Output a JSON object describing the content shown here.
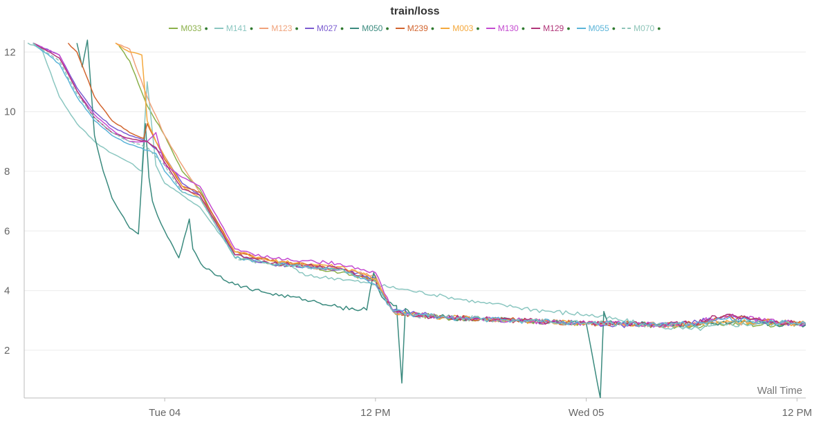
{
  "chart_data": {
    "type": "line",
    "title": "train/loss",
    "xlabel": "Wall Time",
    "ylabel": "",
    "grid": true,
    "legend_position": "top",
    "x_ticks": [
      "Tue 04",
      "12 PM",
      "Wed 05",
      "12 PM"
    ],
    "x_tick_hours": [
      24,
      36,
      48,
      60
    ],
    "xlim": [
      16,
      60.5
    ],
    "y_ticks": [
      2,
      4,
      6,
      8,
      10,
      12
    ],
    "ylim": [
      0.4,
      12.4
    ],
    "series": [
      {
        "name": "M033",
        "color": "#8bb04a",
        "dash": false,
        "x": [
          21.4,
          22,
          23,
          24,
          25,
          26,
          28,
          30,
          32,
          34,
          36,
          37,
          38,
          40,
          42,
          44,
          46,
          48,
          50,
          52,
          54,
          56,
          58,
          60,
          60.5
        ],
        "y": [
          12.2,
          11.7,
          10.2,
          9.2,
          8,
          7.4,
          5.1,
          4.9,
          4.8,
          4.6,
          4.35,
          3.3,
          3.2,
          3.1,
          3.05,
          3.0,
          2.95,
          2.9,
          2.9,
          2.85,
          2.8,
          2.9,
          2.85,
          2.9,
          2.9
        ]
      },
      {
        "name": "M141",
        "color": "#8ac6c0",
        "dash": false,
        "x": [
          16.2,
          17,
          18,
          19,
          20,
          21,
          22,
          22.7,
          23,
          23.5,
          24,
          25,
          26,
          28,
          30,
          31,
          32,
          34,
          36,
          38,
          40,
          42,
          44,
          46,
          48,
          50,
          52,
          54,
          56,
          58,
          60,
          60.5
        ],
        "y": [
          12.3,
          12.1,
          10.5,
          9.6,
          9.0,
          8.6,
          8.3,
          8.0,
          11.0,
          8.2,
          7.6,
          7.2,
          6.8,
          5.2,
          5.0,
          4.9,
          4.5,
          4.4,
          4.2,
          4.0,
          3.8,
          3.6,
          3.45,
          3.3,
          3.2,
          3.0,
          2.8,
          2.7,
          2.85,
          2.9,
          2.95,
          2.9
        ]
      },
      {
        "name": "M123",
        "color": "#f0a27a",
        "dash": false,
        "x": [
          21.2,
          22,
          23,
          24,
          25,
          26,
          28,
          30,
          32,
          34,
          36,
          37,
          38,
          40,
          42,
          44,
          46,
          48,
          50,
          52,
          54,
          56,
          58,
          60,
          60.5
        ],
        "y": [
          12.3,
          12.1,
          10.5,
          9.2,
          8.2,
          7.3,
          5.3,
          5.0,
          4.8,
          4.7,
          4.5,
          3.3,
          3.2,
          3.1,
          3.05,
          3.0,
          2.95,
          2.9,
          2.9,
          2.85,
          2.85,
          2.95,
          2.9,
          2.9,
          2.9
        ]
      },
      {
        "name": "M027",
        "color": "#7a5bd0",
        "dash": false,
        "x": [
          16.5,
          18,
          19,
          20,
          21,
          22,
          23,
          24,
          25,
          26,
          28,
          30,
          32,
          34,
          36,
          37,
          38,
          40,
          42,
          44,
          46,
          48,
          50,
          52,
          54,
          56,
          58,
          60,
          60.5
        ],
        "y": [
          12.3,
          11.9,
          10.8,
          10.0,
          9.5,
          9.2,
          9.0,
          8.5,
          7.6,
          7.2,
          5.2,
          4.9,
          4.8,
          4.7,
          4.4,
          3.35,
          3.25,
          3.1,
          3.05,
          3.0,
          2.95,
          2.9,
          2.85,
          2.85,
          2.9,
          3.2,
          2.95,
          2.9,
          2.85
        ]
      },
      {
        "name": "M050",
        "color": "#3a8a7e",
        "dash": false,
        "x": [
          19,
          19.3,
          19.6,
          20,
          20.5,
          21,
          21.5,
          22,
          22.5,
          22.9,
          23.1,
          23.3,
          23.6,
          24,
          24.8,
          25.4,
          25.6,
          26.2,
          28,
          30,
          32,
          34,
          35.5,
          35.9,
          36.2,
          36.5,
          37.2,
          37.5,
          37.7,
          38,
          40,
          42,
          44,
          46,
          48,
          48.8,
          49.0,
          49.2,
          49.6,
          50,
          52,
          54,
          56,
          58,
          60,
          60.5
        ],
        "y": [
          12.3,
          11.5,
          12.4,
          9.2,
          8.0,
          7.1,
          6.6,
          6.1,
          5.9,
          9.6,
          7.8,
          7.0,
          6.5,
          6.0,
          5.1,
          6.4,
          5.4,
          4.8,
          4.2,
          3.9,
          3.7,
          3.45,
          3.35,
          4.6,
          4.0,
          3.7,
          3.5,
          0.9,
          3.4,
          3.2,
          3.1,
          3.05,
          3.0,
          2.95,
          2.9,
          0.4,
          3.3,
          2.95,
          2.85,
          2.9,
          2.85,
          2.85,
          2.9,
          2.9,
          2.85,
          2.85
        ]
      },
      {
        "name": "M239",
        "color": "#d2642e",
        "dash": false,
        "x": [
          18.5,
          19,
          20,
          21,
          22,
          22.8,
          23,
          23.5,
          24,
          25,
          26,
          28,
          30,
          32,
          34,
          36,
          37,
          38,
          40,
          42,
          44,
          46,
          48,
          50,
          52,
          54,
          56,
          58,
          60,
          60.5
        ],
        "y": [
          12.3,
          12.0,
          10.5,
          9.7,
          9.3,
          9.1,
          9.6,
          9.0,
          8.4,
          7.5,
          7.3,
          5.3,
          5.0,
          4.9,
          4.7,
          4.3,
          3.3,
          3.2,
          3.1,
          3.05,
          3.0,
          2.95,
          2.9,
          2.9,
          2.85,
          2.9,
          3.1,
          3.0,
          2.9,
          2.9
        ]
      },
      {
        "name": "M003",
        "color": "#f4a83c",
        "dash": false,
        "x": [
          21.2,
          22,
          22.7,
          23,
          23.5,
          24,
          25,
          26,
          28,
          30,
          32,
          34,
          36,
          37,
          38,
          40,
          42,
          44,
          46,
          48,
          50,
          52,
          54,
          56,
          58,
          60,
          60.5
        ],
        "y": [
          12.3,
          12.0,
          11.9,
          9.7,
          9.0,
          8.5,
          7.5,
          7.1,
          5.3,
          5.0,
          4.9,
          4.8,
          4.4,
          3.3,
          3.2,
          3.1,
          3.05,
          3.0,
          2.95,
          2.9,
          2.9,
          2.85,
          2.85,
          3.0,
          2.95,
          2.9,
          2.9
        ]
      },
      {
        "name": "M130",
        "color": "#c44ad0",
        "dash": false,
        "x": [
          16.5,
          18,
          19,
          20,
          21,
          22,
          23,
          23.5,
          24,
          25,
          26,
          28,
          30,
          32,
          34,
          36,
          37,
          38,
          40,
          42,
          44,
          46,
          48,
          50,
          52,
          54,
          56,
          58,
          60,
          60.5
        ],
        "y": [
          12.3,
          11.9,
          10.7,
          9.9,
          9.4,
          9.0,
          9.0,
          9.3,
          8.2,
          7.8,
          7.5,
          5.4,
          5.1,
          5.0,
          4.9,
          4.6,
          3.3,
          3.2,
          3.1,
          3.05,
          3.0,
          2.95,
          2.9,
          2.9,
          2.85,
          2.9,
          3.15,
          3.0,
          2.9,
          2.9
        ]
      },
      {
        "name": "M129",
        "color": "#b03478",
        "dash": false,
        "x": [
          16.5,
          18,
          19,
          20,
          21,
          22,
          23,
          23.5,
          24,
          25,
          26,
          28,
          30,
          32,
          34,
          36,
          37,
          38,
          40,
          42,
          44,
          46,
          48,
          50,
          52,
          54,
          56,
          58,
          60,
          60.5
        ],
        "y": [
          12.3,
          11.8,
          10.7,
          9.8,
          9.3,
          9.1,
          9.0,
          8.8,
          8.3,
          7.4,
          7.2,
          5.2,
          4.9,
          4.85,
          4.75,
          4.3,
          3.3,
          3.2,
          3.1,
          3.05,
          3.0,
          2.95,
          2.9,
          2.9,
          2.85,
          2.9,
          3.2,
          3.0,
          2.9,
          2.9
        ]
      },
      {
        "name": "M055",
        "color": "#5ab4d8",
        "dash": false,
        "x": [
          16.5,
          18,
          19,
          20,
          21,
          22,
          23,
          23.5,
          24,
          25,
          26,
          28,
          30,
          32,
          34,
          36,
          37,
          38,
          40,
          42,
          44,
          46,
          48,
          50,
          52,
          54,
          56,
          58,
          60,
          60.5
        ],
        "y": [
          12.3,
          11.6,
          10.5,
          9.7,
          9.2,
          8.9,
          8.7,
          8.6,
          8.0,
          7.3,
          7.1,
          5.1,
          4.9,
          4.8,
          4.7,
          4.2,
          3.3,
          3.2,
          3.1,
          3.05,
          3.0,
          2.95,
          2.9,
          2.9,
          2.85,
          2.9,
          3.05,
          2.95,
          2.9,
          2.9
        ]
      },
      {
        "name": "M070",
        "color": "#8dc4b8",
        "dash": true,
        "x": [
          16.5,
          18,
          19,
          20,
          21,
          22,
          23,
          24,
          25,
          26,
          28,
          30,
          32,
          34,
          36,
          37,
          38,
          40,
          42,
          44,
          46,
          48,
          50,
          52,
          54,
          56,
          58,
          60,
          60.5
        ],
        "y": [
          12.3,
          11.7,
          10.6,
          9.8,
          9.3,
          9.0,
          8.8,
          8.2,
          7.3,
          7.1,
          5.1,
          4.9,
          4.8,
          4.7,
          4.3,
          3.3,
          3.2,
          3.1,
          3.05,
          3.0,
          2.95,
          2.9,
          2.9,
          2.85,
          2.85,
          2.9,
          2.9,
          2.9,
          2.9
        ]
      }
    ]
  }
}
